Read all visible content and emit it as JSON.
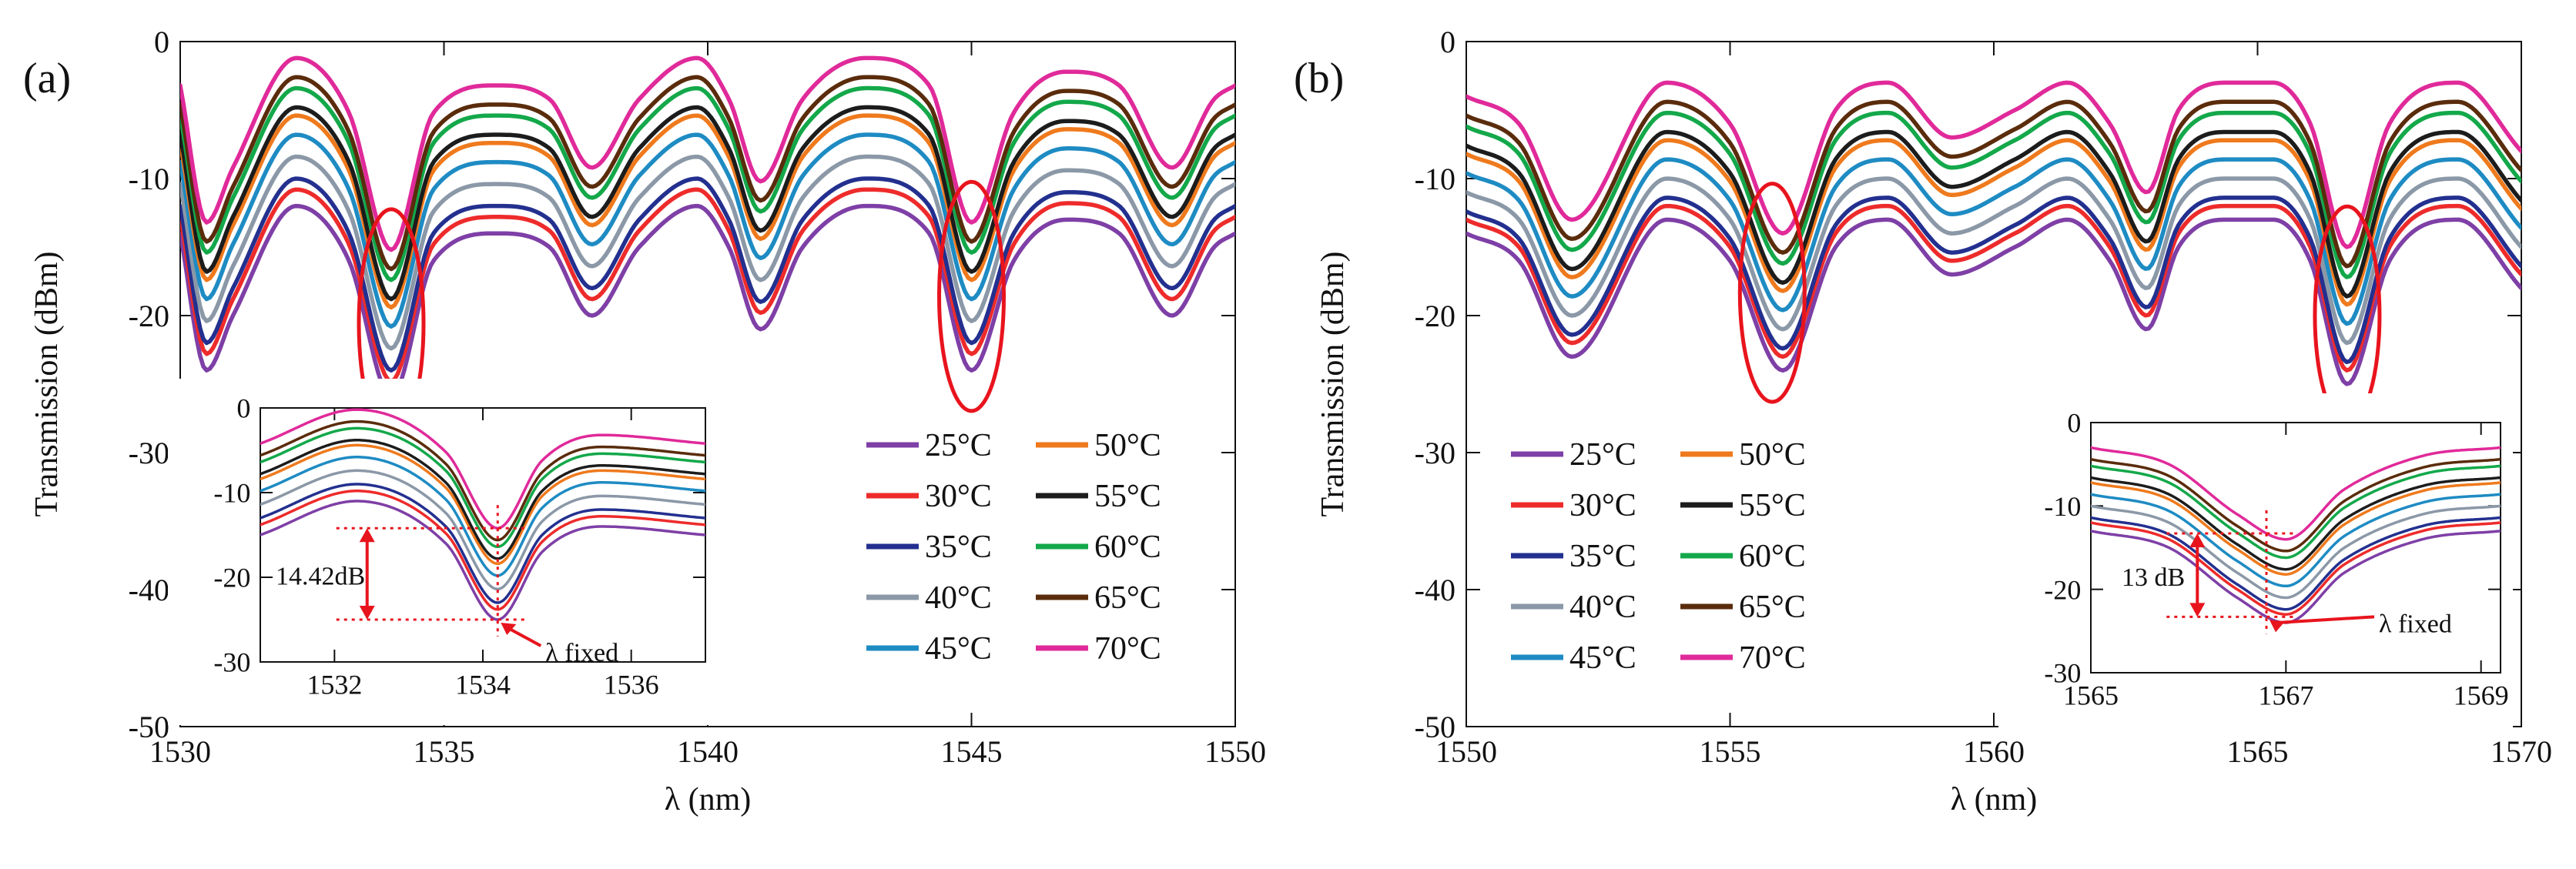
{
  "figure": {
    "panels": [
      {
        "id": "a",
        "panel_label": "(a)",
        "inset_callout": "14.42dB",
        "inset_marker": "λ fixed"
      },
      {
        "id": "b",
        "panel_label": "(b)",
        "inset_callout": "13 dB",
        "inset_marker": "λ fixed"
      }
    ]
  },
  "colors": {
    "25°C": "#7e3fa6",
    "30°C": "#ee2b2b",
    "35°C": "#23308f",
    "40°C": "#8b98a7",
    "45°C": "#1e8bc3",
    "50°C": "#ef7a1d",
    "55°C": "#1c1c1c",
    "60°C": "#13a84a",
    "65°C": "#5a2c0c",
    "70°C": "#e02a9a",
    "highlight": "#e8141d"
  },
  "chart_data": [
    {
      "type": "line",
      "title": "(a)",
      "xlabel": "λ (nm)",
      "ylabel": "Transmission (dBm)",
      "xlim": [
        1530,
        1550
      ],
      "ylim": [
        -50,
        0
      ],
      "xticks": [
        1530,
        1535,
        1540,
        1545,
        1550
      ],
      "yticks": [
        -50,
        -40,
        -30,
        -20,
        -10,
        0
      ],
      "x": [
        1530,
        1530.5,
        1531,
        1532.2,
        1533.2,
        1534.0,
        1534.8,
        1536.0,
        1537.0,
        1537.8,
        1538.7,
        1539.8,
        1540.4,
        1541.0,
        1541.8,
        1543.0,
        1544.2,
        1545.0,
        1545.8,
        1546.8,
        1547.8,
        1548.8,
        1549.6,
        1550
      ],
      "base": [
        -14,
        -24,
        -20,
        -12,
        -16,
        -26,
        -16,
        -14,
        -15,
        -20,
        -15,
        -12,
        -15,
        -21,
        -15,
        -12,
        -14,
        -24,
        -16,
        -13,
        -14,
        -20,
        -15,
        -14
      ],
      "series": [
        {
          "name": "25°C",
          "offset": 0
        },
        {
          "name": "30°C",
          "offset": 1.2
        },
        {
          "name": "35°C",
          "offset": 2.0
        },
        {
          "name": "40°C",
          "offset": 3.6
        },
        {
          "name": "45°C",
          "offset": 5.2
        },
        {
          "name": "50°C",
          "offset": 6.6
        },
        {
          "name": "55°C",
          "offset": 7.2
        },
        {
          "name": "60°C",
          "offset": 8.6
        },
        {
          "name": "65°C",
          "offset": 9.4
        },
        {
          "name": "70°C",
          "offset": 10.8
        }
      ],
      "highlights": [
        1534.0,
        1545.0
      ],
      "legend": {
        "position": "center-right",
        "columns": 2,
        "entries": [
          "25°C",
          "50°C",
          "30°C",
          "55°C",
          "35°C",
          "60°C",
          "40°C",
          "65°C",
          "45°C",
          "70°C"
        ]
      },
      "inset": {
        "xlim": [
          1531,
          1537
        ],
        "ylim": [
          -30,
          0
        ],
        "xticks": [
          1532,
          1534,
          1536
        ],
        "yticks": [
          -30,
          -20,
          -10,
          0
        ],
        "x": [
          1531,
          1532.3,
          1533.5,
          1534.2,
          1534.8,
          1535.6,
          1537
        ],
        "base": [
          -15,
          -11,
          -16,
          -25,
          -17,
          -14,
          -15
        ],
        "dip_delta": 14.42,
        "marker_x": 1534.2
      }
    },
    {
      "type": "line",
      "title": "(b)",
      "xlabel": "λ (nm)",
      "ylabel": "Transmission (dBm)",
      "xlim": [
        1550,
        1570
      ],
      "ylim": [
        -50,
        0
      ],
      "xticks": [
        1550,
        1555,
        1560,
        1565,
        1570
      ],
      "yticks": [
        -50,
        -40,
        -30,
        -20,
        -10,
        0
      ],
      "x": [
        1550,
        1551.0,
        1552.0,
        1553.8,
        1555.0,
        1556.0,
        1557.0,
        1558.0,
        1559.2,
        1560.4,
        1561.4,
        1562.2,
        1562.9,
        1563.5,
        1564.4,
        1565.3,
        1566.0,
        1566.7,
        1567.5,
        1568.8,
        1570
      ],
      "base": [
        -14,
        -16,
        -23,
        -13,
        -16,
        -24,
        -15,
        -13,
        -17,
        -15,
        -13,
        -16,
        -21,
        -15,
        -13,
        -13,
        -16,
        -25,
        -16,
        -13,
        -18
      ],
      "series": [
        {
          "name": "25°C",
          "offset": 0
        },
        {
          "name": "30°C",
          "offset": 1.0
        },
        {
          "name": "35°C",
          "offset": 1.6
        },
        {
          "name": "40°C",
          "offset": 3.0
        },
        {
          "name": "45°C",
          "offset": 4.4
        },
        {
          "name": "50°C",
          "offset": 5.8
        },
        {
          "name": "55°C",
          "offset": 6.4
        },
        {
          "name": "60°C",
          "offset": 7.8
        },
        {
          "name": "65°C",
          "offset": 8.6
        },
        {
          "name": "70°C",
          "offset": 10.0
        }
      ],
      "highlights": [
        1555.8,
        1566.7
      ],
      "legend": {
        "position": "center-left",
        "columns": 2,
        "entries": [
          "25°C",
          "50°C",
          "30°C",
          "55°C",
          "35°C",
          "60°C",
          "40°C",
          "65°C",
          "45°C",
          "70°C"
        ]
      },
      "inset": {
        "xlim": [
          1565,
          1569.2
        ],
        "ylim": [
          -30,
          0
        ],
        "xticks": [
          1565,
          1567,
          1569
        ],
        "yticks": [
          -30,
          -20,
          -10,
          0
        ],
        "x": [
          1565,
          1565.8,
          1566.5,
          1567.0,
          1567.6,
          1568.4,
          1569.2
        ],
        "base": [
          -13,
          -15,
          -21,
          -24,
          -18,
          -14,
          -13
        ],
        "dip_delta": 13,
        "marker_x": 1566.8
      }
    }
  ]
}
